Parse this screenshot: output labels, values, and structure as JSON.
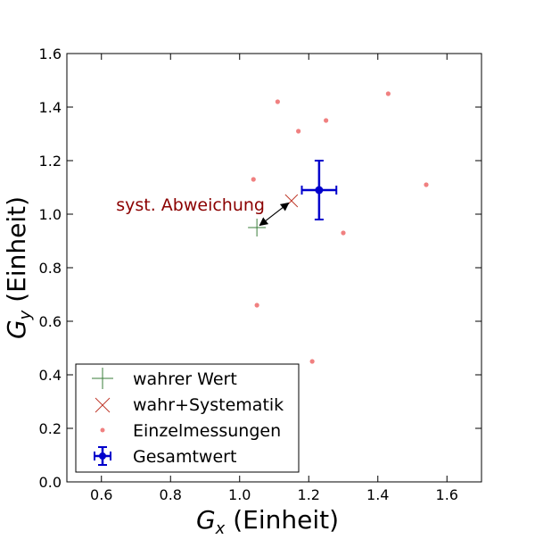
{
  "chart_data": {
    "type": "scatter",
    "xlim": [
      0.5,
      1.7
    ],
    "ylim": [
      0.0,
      1.6
    ],
    "x_ticks": [
      "0.6",
      "0.8",
      "1.0",
      "1.2",
      "1.4",
      "1.6"
    ],
    "y_ticks": [
      "0.0",
      "0.2",
      "0.4",
      "0.6",
      "0.8",
      "1.0",
      "1.2",
      "1.4",
      "1.6"
    ],
    "xlabel": {
      "symbol": "G",
      "subscript": "x",
      "unit": " (Einheit)"
    },
    "ylabel": {
      "symbol": "G",
      "subscript": "y",
      "unit": " (Einheit)"
    },
    "grid": false,
    "legend_position": "lower-left",
    "series": [
      {
        "name": "wahrer Wert",
        "marker": "plus",
        "color": "#3a7d3a",
        "points": [
          [
            1.05,
            0.95
          ]
        ]
      },
      {
        "name": "wahr+Systematik",
        "marker": "x",
        "color": "#c0392b",
        "points": [
          [
            1.15,
            1.05
          ]
        ]
      },
      {
        "name": "Einzelmessungen",
        "marker": "dot",
        "color": "#f08080",
        "points": [
          [
            1.11,
            1.42
          ],
          [
            1.17,
            1.31
          ],
          [
            1.25,
            1.35
          ],
          [
            1.43,
            1.45
          ],
          [
            1.54,
            1.11
          ],
          [
            1.04,
            1.13
          ],
          [
            1.3,
            0.93
          ],
          [
            1.05,
            0.66
          ],
          [
            1.21,
            0.45
          ]
        ]
      },
      {
        "name": "Gesamtwert",
        "marker": "errorbar",
        "color": "#0000cc",
        "points": [
          [
            1.23,
            1.09
          ]
        ],
        "xerr": [
          0.05
        ],
        "yerr": [
          0.11
        ]
      }
    ],
    "annotation": {
      "text": "syst. Abweichung",
      "color": "#8b0000",
      "from": [
        1.05,
        0.95
      ],
      "to": [
        1.15,
        1.05
      ]
    }
  }
}
